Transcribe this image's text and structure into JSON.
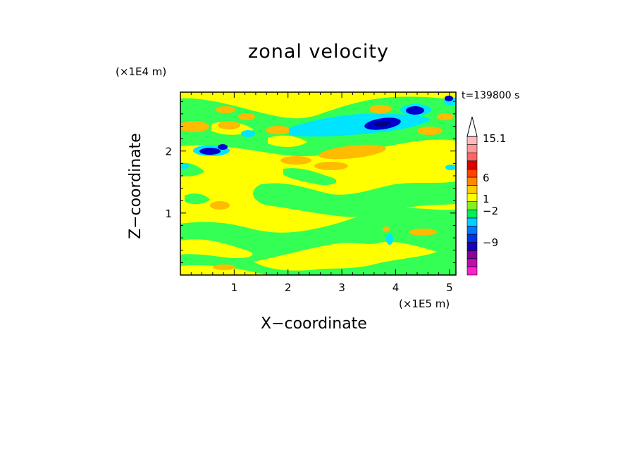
{
  "chart_data": {
    "type": "heatmap",
    "title": "zonal velocity",
    "xlabel": "X−coordinate",
    "ylabel": "Z−coordinate",
    "x_multiplier": "(×1E5 m)",
    "y_multiplier": "(×1E4 m)",
    "time_label": "t=139800 s",
    "xlim": [
      0,
      5.12
    ],
    "ylim": [
      0,
      2.95
    ],
    "x_ticks": [
      1,
      2,
      3,
      4,
      5
    ],
    "y_ticks": [
      1,
      2
    ],
    "grid": false,
    "colorbar": {
      "labels": [
        {
          "text": "15.1",
          "value": 15.1
        },
        {
          "text": "6",
          "value": 6
        },
        {
          "text": "1",
          "value": 1
        },
        {
          "text": "−2",
          "value": -2
        },
        {
          "text": "−9",
          "value": -9
        }
      ],
      "bands": [
        {
          "color": "#ff21cc"
        },
        {
          "color": "#bb10aa"
        },
        {
          "color": "#880099"
        },
        {
          "color": "#1a00bb"
        },
        {
          "color": "#0033dd"
        },
        {
          "color": "#0077ff"
        },
        {
          "color": "#00cfff"
        },
        {
          "color": "#00ee55"
        },
        {
          "color": "#88ee22"
        },
        {
          "color": "#ffff00"
        },
        {
          "color": "#ffcc00"
        },
        {
          "color": "#ff8800"
        },
        {
          "color": "#ff4400"
        },
        {
          "color": "#dd0000"
        },
        {
          "color": "#ff6666"
        },
        {
          "color": "#ff9999"
        },
        {
          "color": "#ffbbbb"
        }
      ]
    },
    "field_colors": {
      "background": "#ffff00",
      "green": "#33ff55",
      "orange": "#ffbb00",
      "cyan": "#00e5ff",
      "blue": "#0000cc",
      "navy": "#000088"
    }
  }
}
